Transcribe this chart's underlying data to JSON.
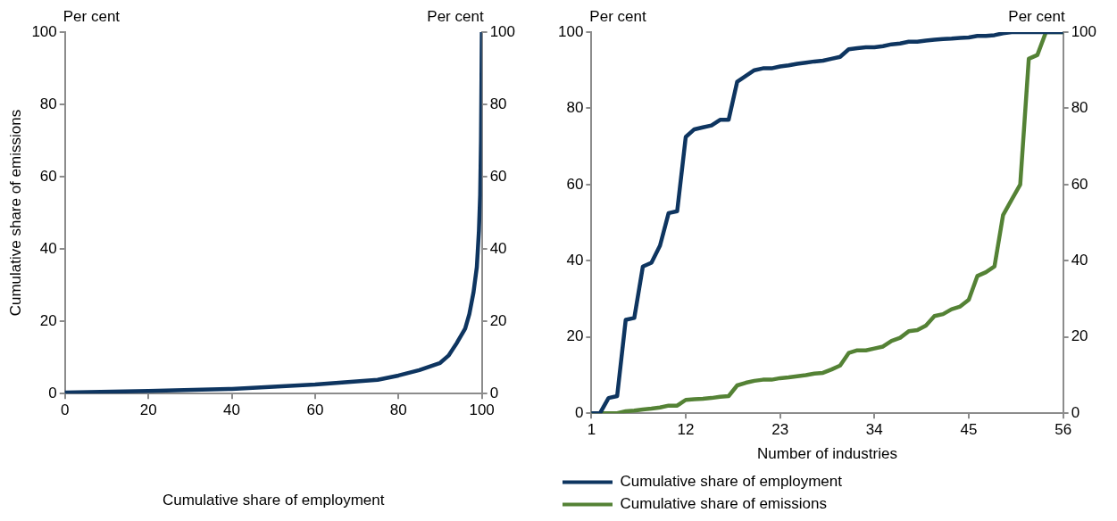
{
  "chart_data": [
    {
      "type": "line",
      "xlabel": "Cumulative share of employment",
      "ylabel": "Cumulative share of emissions",
      "annotations": [
        "Per cent",
        "Per cent"
      ],
      "x": [
        0,
        20,
        40,
        60,
        75,
        80,
        85,
        90,
        92,
        94,
        96,
        97,
        98,
        98.8,
        99.3,
        99.6,
        99.8,
        100
      ],
      "series": [
        {
          "color": "#0e3560",
          "values": [
            0.3,
            0.7,
            1.3,
            2.5,
            3.8,
            5,
            6.5,
            8.5,
            10.5,
            14,
            18,
            22,
            28,
            35,
            45,
            55,
            70,
            100
          ]
        }
      ],
      "xlim": [
        0,
        100
      ],
      "xticks": [
        0,
        20,
        40,
        60,
        80,
        100
      ],
      "ylim": [
        0,
        100
      ],
      "yticks": [
        0,
        20,
        40,
        60,
        80,
        100
      ],
      "y2lim": [
        0,
        100
      ],
      "y2ticks": [
        0,
        20,
        40,
        60,
        80,
        100
      ],
      "grid": false,
      "legend": false,
      "marker": "none",
      "line_style": "solid"
    },
    {
      "type": "line",
      "xlabel": "Number of industries",
      "annotations": [
        "Per cent",
        "Per cent"
      ],
      "x": [
        1,
        2,
        3,
        4,
        5,
        6,
        7,
        8,
        9,
        10,
        11,
        12,
        13,
        14,
        15,
        16,
        17,
        18,
        19,
        20,
        21,
        22,
        23,
        24,
        25,
        26,
        27,
        28,
        29,
        30,
        31,
        32,
        33,
        34,
        35,
        36,
        37,
        38,
        39,
        40,
        41,
        42,
        43,
        44,
        45,
        46,
        47,
        48,
        49,
        50,
        51,
        52,
        53,
        54,
        55,
        56
      ],
      "series": [
        {
          "name": "Cumulative share of employment",
          "color": "#0e3560",
          "values": [
            0,
            0,
            4,
            4.5,
            24.5,
            25,
            38.5,
            39.5,
            44,
            52.5,
            53,
            72.5,
            74.5,
            75,
            75.5,
            77,
            77,
            87,
            88.5,
            90,
            90.5,
            90.5,
            91,
            91.3,
            91.7,
            92,
            92.3,
            92.5,
            93,
            93.5,
            95.5,
            95.8,
            96,
            96,
            96.3,
            96.8,
            97,
            97.5,
            97.5,
            97.8,
            98,
            98.2,
            98.3,
            98.5,
            98.6,
            99,
            99,
            99.2,
            99.7,
            100,
            100,
            100,
            100,
            100,
            100,
            100
          ]
        },
        {
          "name": "Cumulative share of emissions",
          "color": "#548235",
          "values": [
            0,
            0,
            0,
            0,
            0.5,
            0.7,
            1,
            1.2,
            1.5,
            2,
            2,
            3.5,
            3.7,
            3.8,
            4,
            4.3,
            4.5,
            7.3,
            8,
            8.5,
            8.8,
            8.8,
            9.2,
            9.4,
            9.7,
            10,
            10.4,
            10.6,
            11.5,
            12.5,
            15.8,
            16.5,
            16.5,
            17,
            17.5,
            19,
            19.8,
            21.5,
            21.8,
            23,
            25.5,
            26,
            27.3,
            28,
            29.8,
            36,
            37,
            38.5,
            52,
            56,
            60,
            93,
            94,
            100,
            100,
            100
          ]
        }
      ],
      "xlim": [
        1,
        56
      ],
      "xticks": [
        1,
        12,
        23,
        34,
        45,
        56
      ],
      "ylim": [
        0,
        100
      ],
      "yticks": [
        0,
        20,
        40,
        60,
        80,
        100
      ],
      "y2lim": [
        0,
        100
      ],
      "y2ticks": [
        0,
        20,
        40,
        60,
        80,
        100
      ],
      "grid": false,
      "legend": "bottom",
      "marker": "none",
      "line_style": "solid"
    }
  ]
}
